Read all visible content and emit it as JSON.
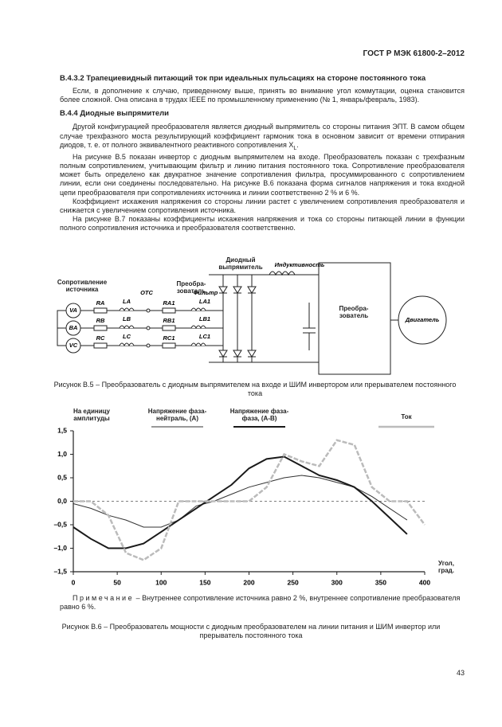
{
  "header": {
    "code": "ГОСТ Р МЭК 61800-2–2012"
  },
  "sections": [
    {
      "heading": "В.4.3.2 Трапециевидный питающий ток при идеальных пульсациях на стороне постоянного тока",
      "paragraphs": [
        "Если, в дополнение к случаю, приведенному выше, принять во внимание угол коммутации, оценка становится более сложной. Она описана в трудах IEEE по промышленному применению (№ 1, январь/февраль, 1983)."
      ]
    },
    {
      "heading": "В.4.4 Диодные выпрямители",
      "paragraphs": [
        "Другой конфигурацией преобразователя является диодный выпрямитель со стороны питания ЭПТ. В самом общем случае трехфазного моста результирующий коэффициент гармоник тока в основном зависит от времени отпирания диодов, т. е. от полного эквивалентного реактивного сопротивления X",
        "На рисунке В.5 показан инвертор с диодным выпрямителем на входе. Преобразователь показан с трехфазным полным сопротивлением, учитывающим фильтр и линию питания постоянного тока. Сопротивление преобразователя может быть определено как двукратное значение сопротивления фильтра, просуммированного с сопротивлением линии, если они соединены последовательно. На рисунке В.6 показана форма сигналов напряжения и тока входной цепи преобразователя при сопротивлениях источника и линии соответственно 2 % и 6 %.",
        "Коэффициент искажения напряжения со стороны линии растет с увеличением сопротивления преобразователя и снижается с увеличением сопротивления источника.",
        "На рисунке В.7 показаны коэффициенты искажения напряжения и тока со стороны питающей линии в функции полного сопротивления источника и преобразователя соответственно."
      ],
      "subscript": "L",
      "end": "."
    }
  ],
  "figure_b5": {
    "source_impedance": "Сопротивление источника",
    "sources": [
      "VA",
      "BA",
      "VC"
    ],
    "r": [
      "RA",
      "RB",
      "RC"
    ],
    "l": [
      "LA",
      "LB",
      "LC"
    ],
    "otc": "OTC",
    "converter_label": "Преобра-зователь",
    "filter": "Фильтр",
    "r1": [
      "RA1",
      "RB1",
      "RC1"
    ],
    "l1": [
      "LA1",
      "LB1",
      "LC1"
    ],
    "rectifier": "Диодный выпрямитель",
    "inductance": "Индуктивность",
    "converter_box": "Преобра-зователь",
    "motor": "Двигатель",
    "caption": "Рисунок В.5 – Преобразователь с диодным выпрямителем на входе и ШИМ инвертором или прерывателем постоянного тока"
  },
  "chart_data": {
    "type": "line",
    "y_label": "На единицу амплитуды",
    "x_label": "Угол, град.",
    "x": [
      0,
      20,
      40,
      60,
      80,
      100,
      120,
      140,
      160,
      180,
      200,
      220,
      240,
      260,
      280,
      300,
      320,
      340,
      360,
      380,
      400
    ],
    "series": [
      {
        "name": "Напряжение фаза-нейтраль, (А)",
        "color": "#333333",
        "values": [
          -0.05,
          -0.15,
          -0.3,
          -0.4,
          -0.55,
          -0.55,
          -0.4,
          -0.1,
          0.0,
          0.15,
          0.3,
          0.4,
          0.5,
          0.55,
          0.5,
          0.4,
          0.3,
          0.1,
          -0.15,
          -0.4,
          null
        ]
      },
      {
        "name": "Напряжение фаза-фаза, (А-В)",
        "color": "#1a1a1a",
        "values": [
          -0.55,
          -0.8,
          -1.0,
          -1.0,
          -0.9,
          -0.65,
          -0.4,
          -0.15,
          0.1,
          0.35,
          0.7,
          0.9,
          0.95,
          0.75,
          0.55,
          0.45,
          0.3,
          0.0,
          -0.35,
          -0.7,
          null
        ]
      },
      {
        "name": "Ток",
        "color": "#bbbbbb",
        "values": [
          0,
          0,
          -0.3,
          -1.1,
          -1.25,
          -1.0,
          0,
          0,
          0,
          0,
          0,
          0.3,
          1.0,
          0.85,
          0.75,
          1.3,
          1.2,
          0.3,
          0,
          0,
          -0.5
        ]
      }
    ],
    "xlim": [
      0,
      400
    ],
    "xticks": [
      0,
      50,
      100,
      150,
      200,
      250,
      300,
      350,
      400
    ],
    "ylim": [
      -1.5,
      1.5
    ],
    "yticks": [
      {
        "value": 1.5,
        "label": "1,5"
      },
      {
        "value": 1.0,
        "label": "1,0"
      },
      {
        "value": 0.5,
        "label": "0,5"
      },
      {
        "value": 0.0,
        "label": "0,0"
      },
      {
        "value": -0.5,
        "label": "–0,5"
      },
      {
        "value": -1.0,
        "label": "–1,0"
      },
      {
        "value": -1.5,
        "label": "–1,5"
      }
    ]
  },
  "note": {
    "label": "Примечание",
    "text": "– Внутреннее сопротивление источника равно 2 %, внутреннее сопротивление преобразователя равно 6 %."
  },
  "figure_b6": {
    "caption": "Рисунок В.6 – Преобразователь мощности с диодным преобразователем на линии питания и ШИМ инвертор или прерыватель постоянного тока"
  },
  "page_number": "43"
}
